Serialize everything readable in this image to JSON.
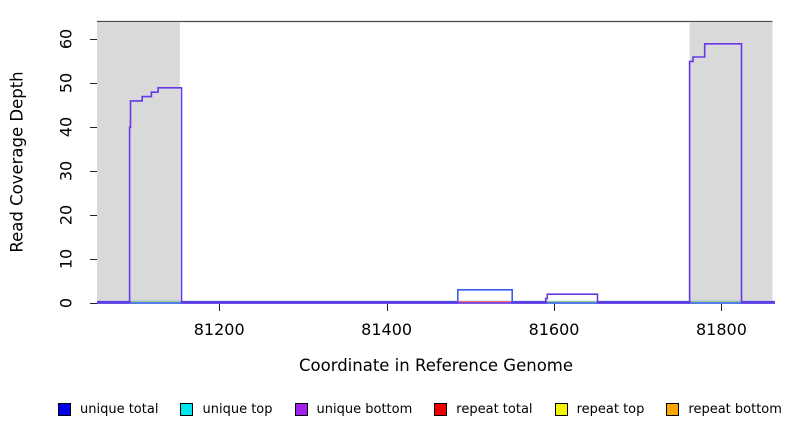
{
  "chart_data": {
    "type": "line",
    "subtype": "step-coverage",
    "title": "",
    "xlabel": "Coordinate in Reference Genome",
    "ylabel": "Read Coverage Depth",
    "xlim": [
      81054,
      81864
    ],
    "ylim": [
      0,
      64.2
    ],
    "xticks": [
      81200,
      81400,
      81600,
      81800
    ],
    "yticks": [
      0,
      10,
      20,
      30,
      40,
      50,
      60
    ],
    "grid": false,
    "legend_position": "bottom",
    "shaded_regions": [
      {
        "name": "shaded-region-left",
        "from": 81054,
        "to": 81153,
        "color": "#d9d9d9"
      },
      {
        "name": "shaded-region-right",
        "from": 81762,
        "to": 81861,
        "color": "#d9d9d9"
      }
    ],
    "top_border": {
      "from": 81054,
      "to": 81861,
      "color": "#4a4a4a"
    },
    "baseline": {
      "color_main": "#4d49e0",
      "color_halo": "#b7abf3"
    },
    "series": [
      {
        "name": "unique total",
        "color": "#3a5ff0",
        "end_value": 0,
        "steps": [
          [
            81054,
            0
          ],
          [
            81485,
            3
          ],
          [
            81550,
            0
          ]
        ]
      },
      {
        "name": "unique bottom",
        "color": "#6838e6",
        "end_value": 0,
        "steps": [
          [
            81054,
            0
          ],
          [
            81093,
            40
          ],
          [
            81094,
            46
          ],
          [
            81108,
            47
          ],
          [
            81119,
            48
          ],
          [
            81127,
            49
          ],
          [
            81155,
            0
          ],
          [
            81590,
            1
          ],
          [
            81592,
            2
          ],
          [
            81652,
            0
          ],
          [
            81762,
            55
          ],
          [
            81766,
            56
          ],
          [
            81780,
            59
          ],
          [
            81824,
            0
          ]
        ]
      }
    ],
    "zero_level_segments": [
      {
        "from": 81094,
        "to": 81155,
        "color": "#8fd494"
      },
      {
        "from": 81485,
        "to": 81550,
        "color": "#ee7070"
      },
      {
        "from": 81592,
        "to": 81652,
        "color": "#8fd494"
      },
      {
        "from": 81762,
        "to": 81824,
        "color": "#8fd494"
      }
    ]
  },
  "legend": {
    "items": [
      {
        "label": "unique total",
        "color": "#0000ee"
      },
      {
        "label": "unique top",
        "color": "#00e5ee"
      },
      {
        "label": "unique bottom",
        "color": "#a020f0"
      },
      {
        "label": "repeat total",
        "color": "#ee0000"
      },
      {
        "label": "repeat top",
        "color": "#f5f500"
      },
      {
        "label": "repeat bottom",
        "color": "#ffa500"
      }
    ]
  }
}
